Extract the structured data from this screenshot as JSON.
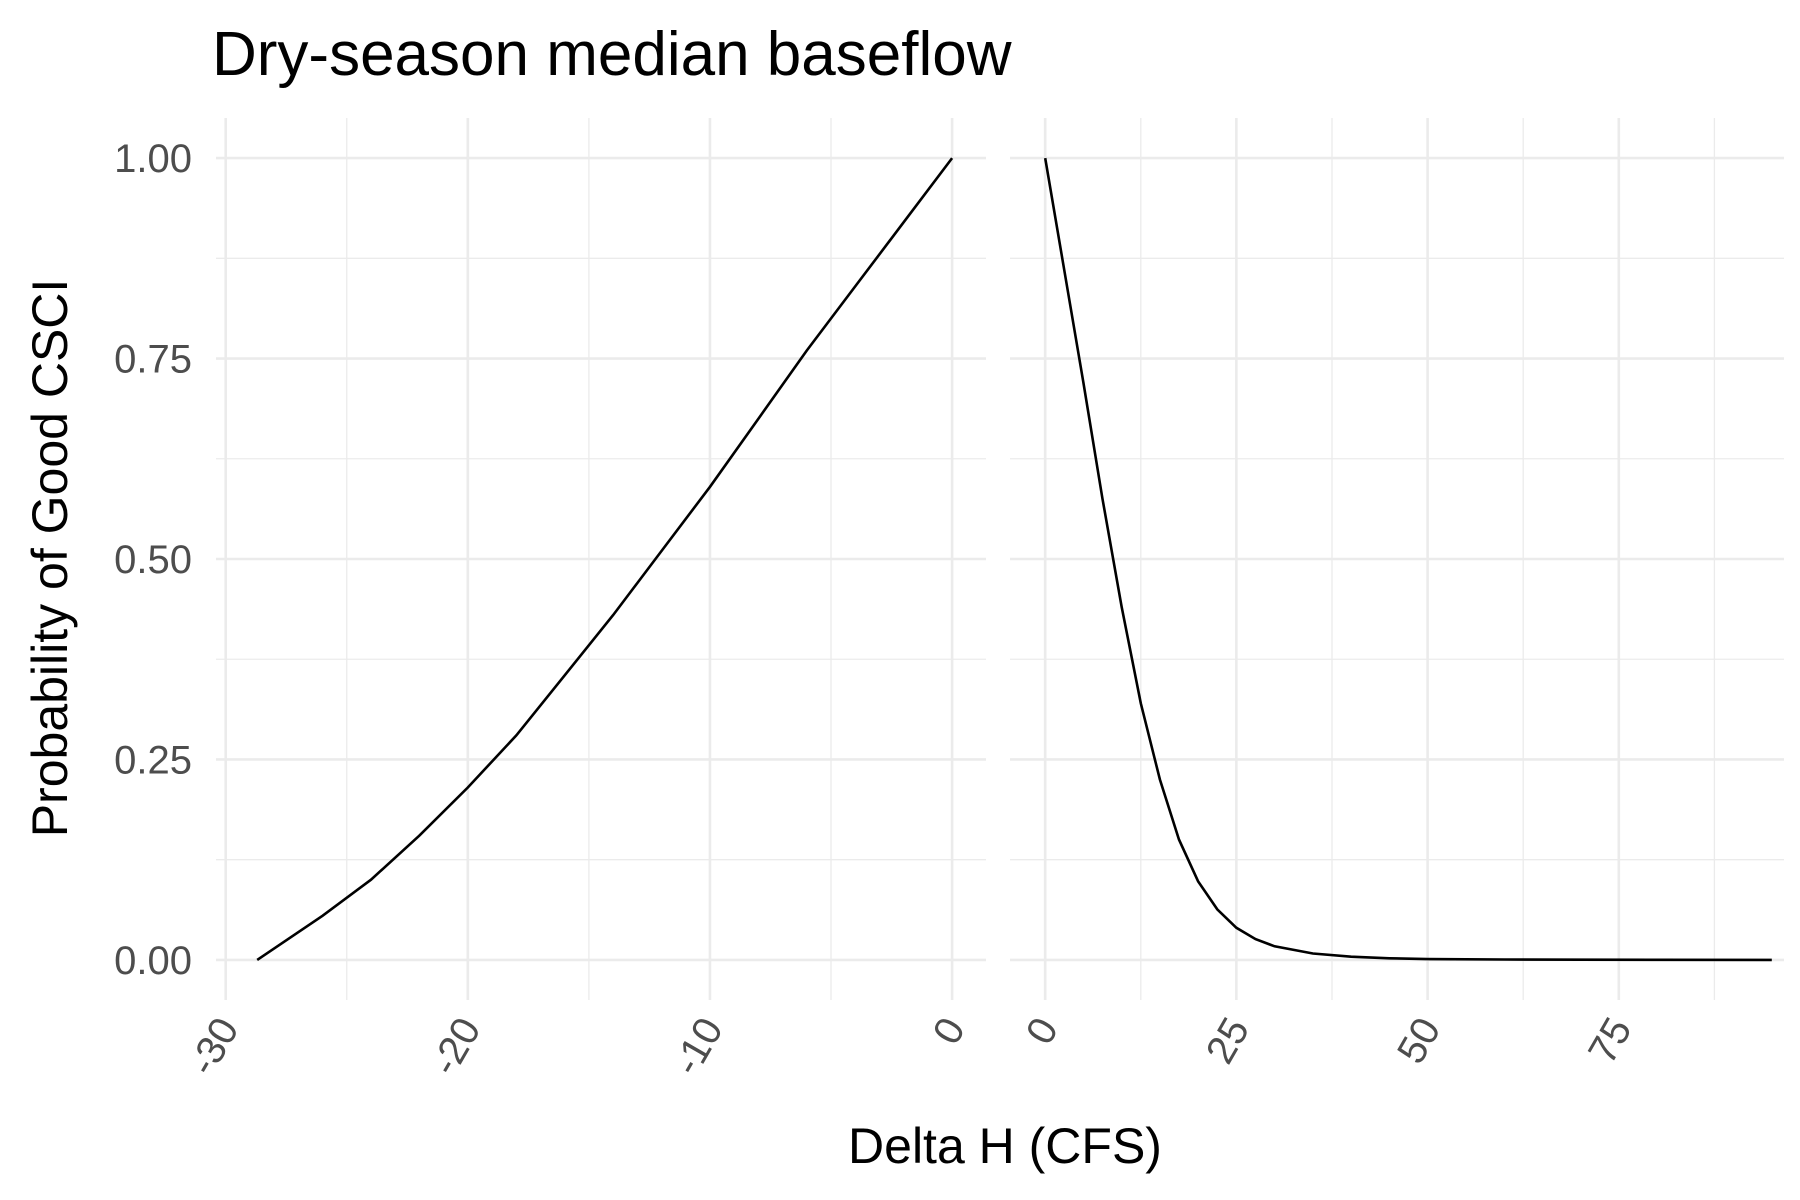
{
  "chart_data": {
    "type": "line",
    "title": "Dry-season median baseflow",
    "xlabel": "Delta H (CFS)",
    "ylabel": "Probability of Good CSCI",
    "grid": true,
    "y_ticks": [
      0,
      0.25,
      0.5,
      0.75,
      1
    ],
    "y_tick_labels": [
      "0.00",
      "0.25",
      "0.50",
      "0.75",
      "1.00"
    ],
    "ylim": [
      -0.05,
      1.05
    ],
    "panels": [
      {
        "name": "negative",
        "xlim": [
          -30.4,
          1.4
        ],
        "x_ticks": [
          -30,
          -20,
          -10,
          0
        ],
        "x_tick_labels": [
          "-30",
          "-20",
          "-10",
          "0"
        ],
        "x_minor_ticks": [
          -25,
          -15,
          -5
        ],
        "series": [
          {
            "x": [
              -28.7,
              -26,
              -24,
              -22,
              -20,
              -18,
              -16,
              -14,
              -12,
              -10,
              -8,
              -6,
              -4,
              -2,
              0
            ],
            "y": [
              0.0,
              0.055,
              0.1,
              0.155,
              0.215,
              0.28,
              0.355,
              0.43,
              0.51,
              0.59,
              0.675,
              0.76,
              0.84,
              0.92,
              1.0
            ]
          }
        ]
      },
      {
        "name": "positive",
        "xlim": [
          -4.6,
          96.6
        ],
        "x_ticks": [
          0,
          25,
          50,
          75
        ],
        "x_tick_labels": [
          "0",
          "25",
          "50",
          "75"
        ],
        "x_minor_ticks": [
          12.5,
          37.5,
          62.5,
          87.5
        ],
        "series": [
          {
            "x": [
              0,
              2.5,
              5,
              7.5,
              10,
              12.5,
              15,
              17.5,
              20,
              22.5,
              25,
              27.5,
              30,
              35,
              40,
              45,
              50,
              60,
              70,
              80,
              95
            ],
            "y": [
              1.0,
              0.86,
              0.72,
              0.575,
              0.44,
              0.32,
              0.225,
              0.15,
              0.098,
              0.063,
              0.04,
              0.026,
              0.017,
              0.008,
              0.004,
              0.002,
              0.001,
              0.0005,
              0.0002,
              0.0001,
              0.0
            ]
          }
        ]
      }
    ]
  }
}
